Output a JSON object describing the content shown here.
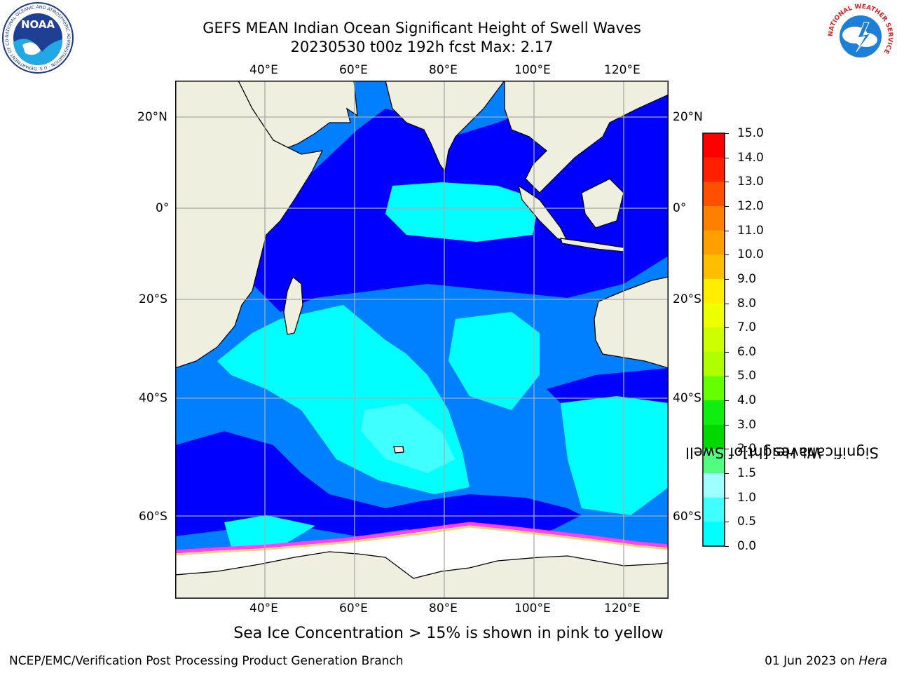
{
  "title": {
    "line1": "GEFS MEAN Indian Ocean Significant Height of Swell Waves",
    "line2": "20230530 t00z 192h fcst   Max: 2.17"
  },
  "map": {
    "lon_ticks": [
      "40°E",
      "60°E",
      "80°E",
      "100°E",
      "120°E"
    ],
    "lat_ticks": [
      "20°N",
      "0°",
      "20°S",
      "40°S",
      "60°S"
    ],
    "extent": {
      "lon_min": 20,
      "lon_max": 130,
      "lat_min": -76,
      "lat_max": 28
    },
    "colors": {
      "land": "#efefdf",
      "ocean_low": "#0000ff",
      "ocean_mid": "#0080ff",
      "ocean_high": "#00ffff",
      "ocean_higher": "#40ffff",
      "ice": "#ffffff",
      "ice_edge": "#ff40ff"
    }
  },
  "colorbar": {
    "title_line1": "Significant Height of Swell",
    "title_line2": "Waves [m]",
    "labels": [
      "15.0",
      "14.0",
      "13.0",
      "12.0",
      "11.0",
      "10.0",
      "9.0",
      "8.0",
      "7.0",
      "6.0",
      "5.0",
      "4.0",
      "3.0",
      "2.0",
      "1.5",
      "1.0",
      "0.5",
      "0.0"
    ],
    "colors": [
      "#ff0000",
      "#ff2000",
      "#ff5000",
      "#ff7f00",
      "#ff9f00",
      "#ffbf00",
      "#ffee00",
      "#eeff00",
      "#ccff00",
      "#b0ff00",
      "#66ff00",
      "#10ee10",
      "#00d800",
      "#50ff80",
      "#a0ffff",
      "#40ffff",
      "#00ffff",
      "#0080ff",
      "#0000ff"
    ]
  },
  "footnote": "Sea Ice Concentration > 15% is shown in pink to yellow",
  "credit_left": "NCEP/EMC/Verification Post Processing Product Generation Branch",
  "credit_right_prefix": "01 Jun 2023 on ",
  "credit_right_host": "Hera",
  "logos": {
    "noaa_text": "NOAA",
    "noaa_ring": "NATIONAL OCEANIC AND ATMOSPHERIC ADMINISTRATION · U.S. DEPARTMENT OF COMMERCE",
    "nws_ring": "NATIONAL WEATHER SERVICE"
  }
}
